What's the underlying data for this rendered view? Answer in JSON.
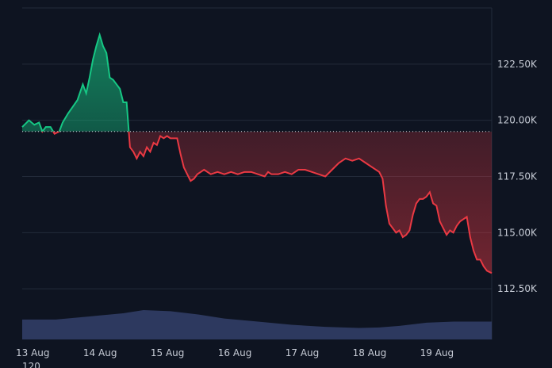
{
  "chart_data": {
    "type": "area",
    "baseline": 119500,
    "y_ticks": [
      "122.50K",
      "120.00K",
      "117.50K",
      "115.00K",
      "112.50K"
    ],
    "y_tick_values": [
      122500,
      120000,
      117500,
      115000,
      112500
    ],
    "x_ticks": [
      "13 Aug",
      "14 Aug",
      "15 Aug",
      "16 Aug",
      "17 Aug",
      "18 Aug",
      "19 Aug"
    ],
    "ylim": [
      110000,
      125000
    ],
    "xlim": [
      13.0,
      19.97
    ],
    "grid": true,
    "colors": {
      "above": "#16c784",
      "below": "#ea3943",
      "volume": "#33406a",
      "baseline": "#c7ccd6"
    },
    "series": [
      {
        "values": [
          [
            13.0,
            119700
          ],
          [
            13.1,
            120000
          ],
          [
            13.18,
            119800
          ],
          [
            13.25,
            119900
          ],
          [
            13.3,
            119500
          ],
          [
            13.35,
            119700
          ],
          [
            13.42,
            119700
          ],
          [
            13.48,
            119400
          ],
          [
            13.55,
            119500
          ],
          [
            13.6,
            119900
          ],
          [
            13.68,
            120300
          ],
          [
            13.75,
            120600
          ],
          [
            13.82,
            120900
          ],
          [
            13.9,
            121600
          ],
          [
            13.95,
            121200
          ],
          [
            14.0,
            121900
          ],
          [
            14.05,
            122700
          ],
          [
            14.1,
            123300
          ],
          [
            14.15,
            123800
          ],
          [
            14.2,
            123300
          ],
          [
            14.25,
            123000
          ],
          [
            14.3,
            121900
          ],
          [
            14.35,
            121800
          ],
          [
            14.4,
            121600
          ],
          [
            14.45,
            121400
          ],
          [
            14.5,
            120800
          ],
          [
            14.55,
            120800
          ],
          [
            14.6,
            118800
          ],
          [
            14.65,
            118600
          ],
          [
            14.7,
            118300
          ],
          [
            14.75,
            118600
          ],
          [
            14.8,
            118400
          ],
          [
            14.85,
            118800
          ],
          [
            14.9,
            118600
          ],
          [
            14.95,
            119000
          ],
          [
            15.0,
            118900
          ],
          [
            15.05,
            119300
          ],
          [
            15.1,
            119200
          ],
          [
            15.15,
            119300
          ],
          [
            15.2,
            119200
          ],
          [
            15.3,
            119200
          ],
          [
            15.35,
            118500
          ],
          [
            15.4,
            117900
          ],
          [
            15.45,
            117600
          ],
          [
            15.5,
            117300
          ],
          [
            15.55,
            117400
          ],
          [
            15.6,
            117600
          ],
          [
            15.7,
            117800
          ],
          [
            15.8,
            117600
          ],
          [
            15.9,
            117700
          ],
          [
            16.0,
            117600
          ],
          [
            16.1,
            117700
          ],
          [
            16.2,
            117600
          ],
          [
            16.3,
            117700
          ],
          [
            16.4,
            117700
          ],
          [
            16.5,
            117600
          ],
          [
            16.6,
            117500
          ],
          [
            16.65,
            117700
          ],
          [
            16.7,
            117600
          ],
          [
            16.8,
            117600
          ],
          [
            16.9,
            117700
          ],
          [
            17.0,
            117600
          ],
          [
            17.1,
            117800
          ],
          [
            17.2,
            117800
          ],
          [
            17.3,
            117700
          ],
          [
            17.4,
            117600
          ],
          [
            17.5,
            117500
          ],
          [
            17.6,
            117800
          ],
          [
            17.7,
            118100
          ],
          [
            17.8,
            118300
          ],
          [
            17.9,
            118200
          ],
          [
            18.0,
            118300
          ],
          [
            18.1,
            118100
          ],
          [
            18.2,
            117900
          ],
          [
            18.3,
            117700
          ],
          [
            18.35,
            117400
          ],
          [
            18.4,
            116200
          ],
          [
            18.45,
            115400
          ],
          [
            18.5,
            115200
          ],
          [
            18.55,
            115000
          ],
          [
            18.6,
            115100
          ],
          [
            18.65,
            114800
          ],
          [
            18.7,
            114900
          ],
          [
            18.75,
            115100
          ],
          [
            18.8,
            115800
          ],
          [
            18.85,
            116300
          ],
          [
            18.9,
            116500
          ],
          [
            18.95,
            116500
          ],
          [
            19.0,
            116600
          ],
          [
            19.05,
            116800
          ],
          [
            19.1,
            116300
          ],
          [
            19.15,
            116200
          ],
          [
            19.2,
            115500
          ],
          [
            19.25,
            115200
          ],
          [
            19.3,
            114900
          ],
          [
            19.35,
            115100
          ],
          [
            19.4,
            115000
          ],
          [
            19.45,
            115300
          ],
          [
            19.5,
            115500
          ],
          [
            19.55,
            115600
          ],
          [
            19.6,
            115700
          ],
          [
            19.65,
            114800
          ],
          [
            19.7,
            114200
          ],
          [
            19.75,
            113800
          ],
          [
            19.8,
            113800
          ],
          [
            19.85,
            113500
          ],
          [
            19.9,
            113300
          ],
          [
            19.97,
            113200
          ]
        ]
      }
    ],
    "volume": [
      [
        13.0,
        0.38
      ],
      [
        13.5,
        0.38
      ],
      [
        14.0,
        0.44
      ],
      [
        14.5,
        0.5
      ],
      [
        14.8,
        0.56
      ],
      [
        15.2,
        0.54
      ],
      [
        15.6,
        0.48
      ],
      [
        16.0,
        0.4
      ],
      [
        16.5,
        0.34
      ],
      [
        17.0,
        0.28
      ],
      [
        17.5,
        0.24
      ],
      [
        18.0,
        0.22
      ],
      [
        18.3,
        0.23
      ],
      [
        18.6,
        0.26
      ],
      [
        19.0,
        0.32
      ],
      [
        19.4,
        0.34
      ],
      [
        19.97,
        0.34
      ]
    ],
    "stray_label": "120"
  }
}
